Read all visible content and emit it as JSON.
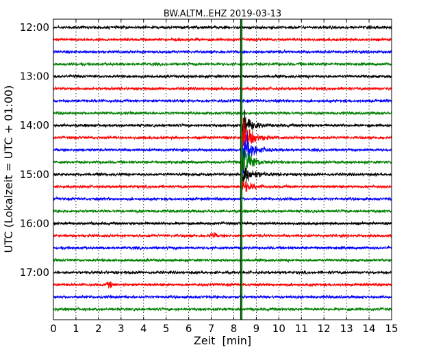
{
  "chart_data": {
    "type": "line",
    "title": "BW.ALTM..EHZ 2019-03-13",
    "xlabel": "Zeit  [min]",
    "ylabel": "UTC (Lokalzeit = UTC + 01:00)",
    "xlim": [
      0,
      15
    ],
    "x_ticks": [
      "0",
      "1",
      "2",
      "3",
      "4",
      "5",
      "6",
      "7",
      "8",
      "9",
      "10",
      "11",
      "12",
      "13",
      "14",
      "15"
    ],
    "y_tick_labels": [
      "12:00",
      "13:00",
      "14:00",
      "15:00",
      "16:00",
      "17:00"
    ],
    "grid": "vertical dotted",
    "row_interval_min": 15,
    "row_start": "12:00",
    "row_count": 24,
    "color_cycle": [
      "#000000",
      "#ff0000",
      "#0000ff",
      "#008000"
    ],
    "event": {
      "onset_min": 8.35,
      "peak_rows": [
        8,
        9,
        10,
        11,
        12,
        13
      ],
      "coda_end_min": 9.6
    },
    "minor_events": [
      {
        "row": 17,
        "min": 7.1
      },
      {
        "row": 21,
        "min": 2.5
      }
    ]
  }
}
